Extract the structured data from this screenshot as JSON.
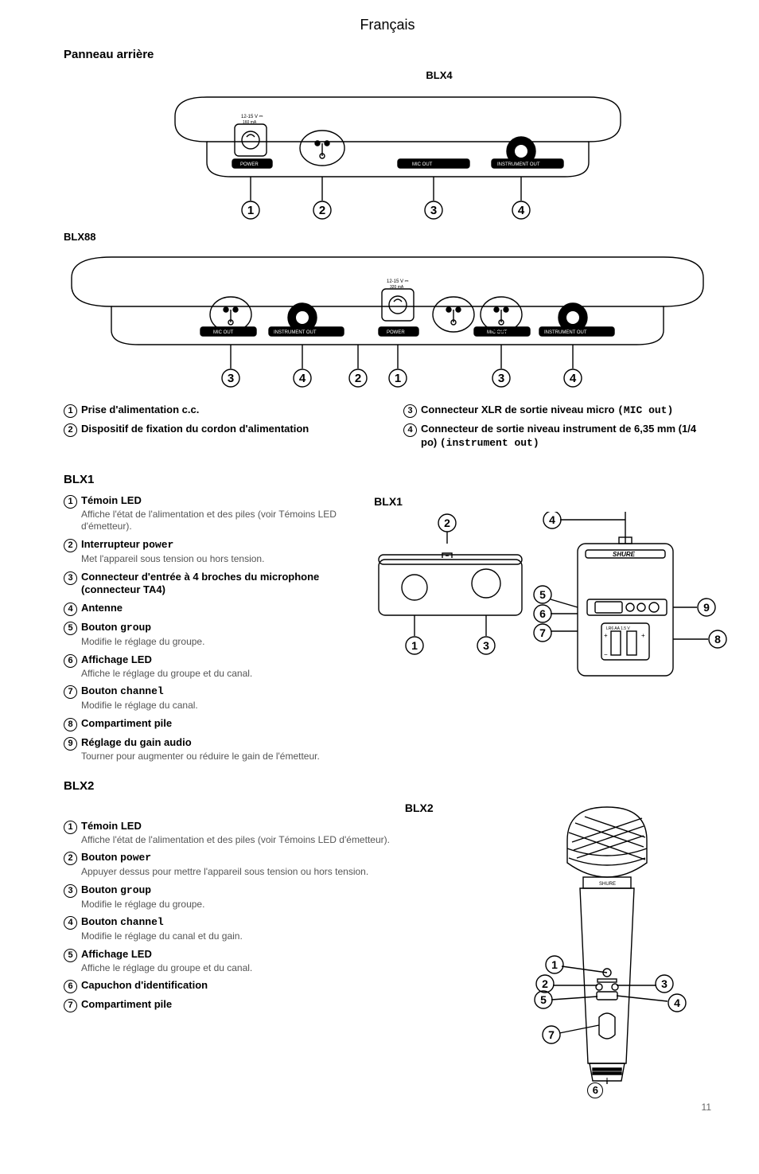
{
  "page": {
    "language": "Français",
    "number": "11"
  },
  "rear": {
    "title": "Panneau arrière",
    "model_a": "BLX4",
    "model_b": "BLX88",
    "legend": [
      {
        "n": "①",
        "label": "Prise d'alimentation c.c."
      },
      {
        "n": "②",
        "label": "Dispositif de fixation du cordon d'alimentation"
      },
      {
        "n": "③",
        "label": "Connecteur XLR de sortie niveau micro",
        "mono": "(MIC out)"
      },
      {
        "n": "④",
        "label": "Connecteur de sortie niveau instrument de 6,35 mm (1/4 po)",
        "mono": "(instrument out)"
      }
    ],
    "blx4_port_labels": {
      "power": "POWER",
      "mic": "MIC OUT",
      "instr": "INSTRUMENT OUT",
      "volt": "12-15 V",
      "amp": "160 mA"
    },
    "blx88_port_labels": {
      "power": "POWER",
      "mic": "MIC OUT",
      "instr": "INSTRUMENT OUT",
      "volt": "12-15 V",
      "amp": "320 mA"
    }
  },
  "blx1": {
    "title": "BLX1",
    "diagram_label": "BLX1",
    "brand": "SHURE",
    "batt": "LR6 AA 1.5 V",
    "legend": [
      {
        "n": "①",
        "label": "Témoin LED",
        "desc": "Affiche l'état de l'alimentation et des piles (voir Témoins LED d'émetteur)."
      },
      {
        "n": "②",
        "label": "Interrupteur ",
        "mono": "power",
        "desc": "Met l'appareil sous tension ou hors tension."
      },
      {
        "n": "③",
        "label": "Connecteur d'entrée à 4 broches du microphone (connecteur TA4)"
      },
      {
        "n": "④",
        "label": "Antenne"
      },
      {
        "n": "⑤",
        "label": "Bouton ",
        "mono": "group",
        "desc": "Modifie le réglage du groupe."
      },
      {
        "n": "⑥",
        "label": "Affichage LED",
        "desc": "Affiche le réglage du groupe et du canal."
      },
      {
        "n": "⑦",
        "label": "Bouton ",
        "mono": "channel",
        "desc": "Modifie le réglage du canal."
      },
      {
        "n": "⑧",
        "label": "Compartiment pile"
      },
      {
        "n": "⑨",
        "label": "Réglage du gain audio",
        "desc": "Tourner pour augmenter ou réduire le gain de l'émetteur."
      }
    ]
  },
  "blx2": {
    "title": "BLX2",
    "diagram_label": "BLX2",
    "brand": "SHURE",
    "legend": [
      {
        "n": "①",
        "label": "Témoin LED",
        "desc": "Affiche l'état de l'alimentation et des piles (voir Témoins LED d'émetteur)."
      },
      {
        "n": "②",
        "label": "Bouton ",
        "mono": "power",
        "desc": "Appuyer dessus pour mettre l'appareil sous tension ou hors tension."
      },
      {
        "n": "③",
        "label": "Bouton ",
        "mono": "group",
        "desc": "Modifie le réglage du groupe."
      },
      {
        "n": "④",
        "label": "Bouton ",
        "mono": "channel",
        "desc": "Modifie le réglage du canal et du gain."
      },
      {
        "n": "⑤",
        "label": "Affichage LED",
        "desc": "Affiche le réglage du groupe et du canal."
      },
      {
        "n": "⑥",
        "label": "Capuchon d'identification"
      },
      {
        "n": "⑦",
        "label": "Compartiment pile"
      }
    ]
  },
  "style": {
    "stroke": "#000000",
    "light": "#555555",
    "linewidth": 1.4
  }
}
